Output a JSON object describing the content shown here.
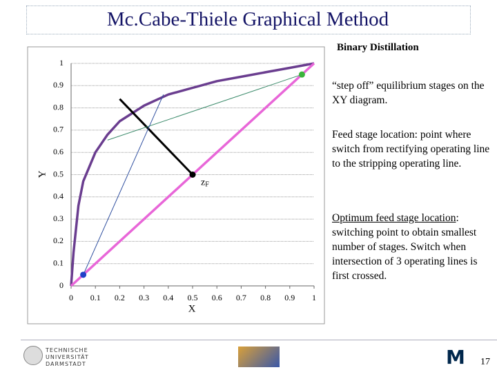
{
  "slide": {
    "title": "Mc.Cabe-Thiele Graphical Method",
    "subtitle": "Binary Distillation",
    "notes": [
      "“step off” equilibrium stages on the XY diagram.",
      "Feed stage location:  point where switch from rectifying operating line to the stripping operating line."
    ],
    "highlight": {
      "heading": "Optimum feed stage location",
      "colon": ":",
      "text": " switching point to obtain smallest number of stages. Switch when intersection of 3 operating lines is first crossed."
    },
    "logo_lines": [
      "TECHNISCHE",
      "UNIVERSITÄT",
      "DARMSTADT"
    ],
    "logo_letter": "M",
    "page_number": "17"
  },
  "chart_data": {
    "type": "line",
    "xlabel": "X",
    "ylabel": "Y",
    "xlim": [
      0,
      1
    ],
    "ylim": [
      0,
      1
    ],
    "xticks": [
      0,
      0.1,
      0.2,
      0.3,
      0.4,
      0.5,
      0.6,
      0.7,
      0.8,
      0.9,
      1
    ],
    "yticks": [
      0,
      0.1,
      0.2,
      0.3,
      0.4,
      0.5,
      0.6,
      0.7,
      0.8,
      0.9,
      1
    ],
    "grid": "y",
    "series": [
      {
        "color": "#6a3d8f",
        "width": 3.5,
        "x": [
          0,
          0.01,
          0.03,
          0.05,
          0.1,
          0.15,
          0.2,
          0.3,
          0.4,
          0.5,
          0.6,
          0.7,
          0.8,
          0.9,
          1
        ],
        "values": [
          0,
          0.15,
          0.36,
          0.47,
          0.6,
          0.68,
          0.74,
          0.81,
          0.86,
          0.89,
          0.92,
          0.94,
          0.96,
          0.98,
          1
        ]
      },
      {
        "color": "#e866d8",
        "width": 3.5,
        "x": [
          0,
          1
        ],
        "values": [
          0,
          1
        ]
      },
      {
        "color": "#000000",
        "width": 3,
        "x": [
          0.5,
          0.2
        ],
        "values": [
          0.5,
          0.84
        ]
      },
      {
        "color": "#3a8a6a",
        "width": 1,
        "x": [
          0.95,
          0.15
        ],
        "values": [
          0.95,
          0.655
        ]
      },
      {
        "color": "#3050a0",
        "width": 1,
        "x": [
          0.05,
          0.38
        ],
        "values": [
          0.05,
          0.86
        ]
      }
    ],
    "points": {
      "x": [
        0.95,
        0.05,
        0.5
      ],
      "values": [
        0.95,
        0.05,
        0.5
      ],
      "colors": [
        "#3cb43c",
        "#2040c8",
        "#000000"
      ]
    },
    "annotation": {
      "text": "z",
      "sub": "F",
      "x": 0.5,
      "y": 0.5
    }
  }
}
